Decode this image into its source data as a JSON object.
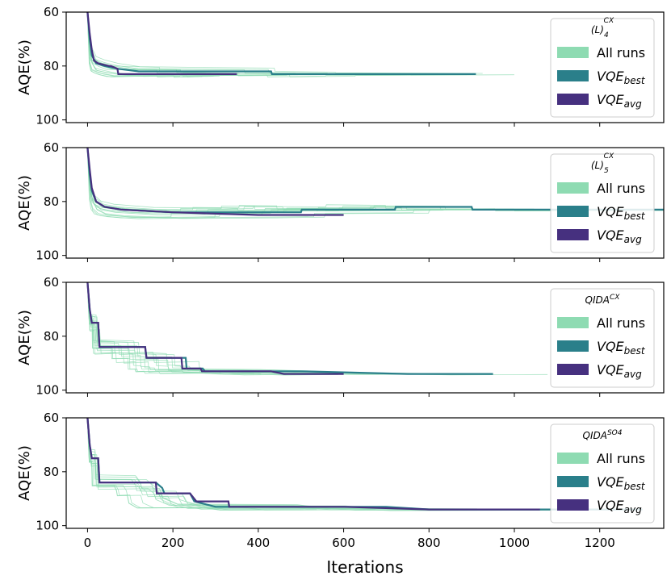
{
  "chart_data": {
    "type": "line",
    "x_label": "Iterations",
    "y_label": "AQE(%)",
    "x_ticks": [
      0,
      200,
      400,
      600,
      800,
      1000,
      1200
    ],
    "y_ticks": [
      60,
      80,
      100
    ],
    "xlim": [
      -50,
      1350
    ],
    "ylim": [
      101,
      60
    ],
    "y_inverted": true,
    "legend_labels": {
      "all_runs": "All runs",
      "vqe_best_main": "VQE",
      "vqe_best_sub": "best",
      "vqe_avg_main": "VQE",
      "vqe_avg_sub": "avg"
    },
    "colors": {
      "all_runs": "#8edbb2",
      "vqe_best": "#2a7f8a",
      "vqe_avg": "#46307f"
    },
    "panels": [
      {
        "title_main": "(L)",
        "title_sub": "4",
        "title_sup": "CX",
        "best": [
          [
            0,
            58
          ],
          [
            5,
            70
          ],
          [
            10,
            76
          ],
          [
            20,
            79
          ],
          [
            40,
            80
          ],
          [
            70,
            81
          ],
          [
            120,
            82
          ],
          [
            250,
            82
          ],
          [
            430,
            82
          ],
          [
            432,
            83
          ],
          [
            570,
            83
          ],
          [
            572,
            83
          ],
          [
            910,
            83
          ]
        ],
        "avg": [
          [
            0,
            58
          ],
          [
            5,
            68
          ],
          [
            10,
            74
          ],
          [
            15,
            78
          ],
          [
            25,
            79
          ],
          [
            50,
            80
          ],
          [
            55,
            80
          ],
          [
            70,
            81
          ],
          [
            72,
            83
          ],
          [
            100,
            83
          ],
          [
            350,
            83
          ]
        ]
      },
      {
        "title_main": "(L)",
        "title_sub": "5",
        "title_sup": "CX",
        "best": [
          [
            0,
            58
          ],
          [
            5,
            70
          ],
          [
            10,
            76
          ],
          [
            20,
            80
          ],
          [
            40,
            82
          ],
          [
            80,
            83
          ],
          [
            200,
            84
          ],
          [
            400,
            84
          ],
          [
            500,
            84
          ],
          [
            502,
            83
          ],
          [
            720,
            83
          ],
          [
            722,
            82
          ],
          [
            900,
            82
          ],
          [
            902,
            83
          ],
          [
            1350,
            83
          ]
        ],
        "avg": [
          [
            0,
            58
          ],
          [
            5,
            68
          ],
          [
            10,
            75
          ],
          [
            20,
            80
          ],
          [
            40,
            82
          ],
          [
            80,
            83
          ],
          [
            200,
            84
          ],
          [
            400,
            85
          ],
          [
            600,
            85
          ]
        ]
      },
      {
        "title_main": "QIDA",
        "title_sub": "",
        "title_sup": "CX",
        "best": [
          [
            0,
            58
          ],
          [
            5,
            70
          ],
          [
            10,
            75
          ],
          [
            25,
            75
          ],
          [
            28,
            84
          ],
          [
            90,
            84
          ],
          [
            135,
            84
          ],
          [
            138,
            88
          ],
          [
            200,
            88
          ],
          [
            230,
            88
          ],
          [
            232,
            92
          ],
          [
            270,
            92
          ],
          [
            275,
            93
          ],
          [
            500,
            93
          ],
          [
            750,
            94
          ],
          [
            950,
            94
          ]
        ],
        "avg": [
          [
            0,
            58
          ],
          [
            5,
            70
          ],
          [
            10,
            75
          ],
          [
            25,
            75
          ],
          [
            28,
            84
          ],
          [
            90,
            84
          ],
          [
            135,
            84
          ],
          [
            138,
            88
          ],
          [
            220,
            88
          ],
          [
            222,
            92
          ],
          [
            265,
            92
          ],
          [
            268,
            93
          ],
          [
            430,
            93
          ],
          [
            460,
            94
          ],
          [
            600,
            94
          ]
        ]
      },
      {
        "title_main": "QIDA",
        "title_sub": "",
        "title_sup": "SO4",
        "best": [
          [
            0,
            58
          ],
          [
            5,
            70
          ],
          [
            10,
            75
          ],
          [
            25,
            75
          ],
          [
            28,
            84
          ],
          [
            160,
            84
          ],
          [
            175,
            86
          ],
          [
            180,
            88
          ],
          [
            240,
            88
          ],
          [
            250,
            91
          ],
          [
            275,
            92
          ],
          [
            300,
            93
          ],
          [
            700,
            93
          ],
          [
            800,
            94
          ],
          [
            1300,
            94
          ]
        ],
        "avg": [
          [
            0,
            58
          ],
          [
            5,
            70
          ],
          [
            10,
            75
          ],
          [
            25,
            75
          ],
          [
            28,
            84
          ],
          [
            160,
            84
          ],
          [
            162,
            88
          ],
          [
            240,
            88
          ],
          [
            255,
            91
          ],
          [
            330,
            91
          ],
          [
            332,
            93
          ],
          [
            600,
            93
          ],
          [
            800,
            94
          ],
          [
            1060,
            94
          ]
        ]
      }
    ]
  }
}
